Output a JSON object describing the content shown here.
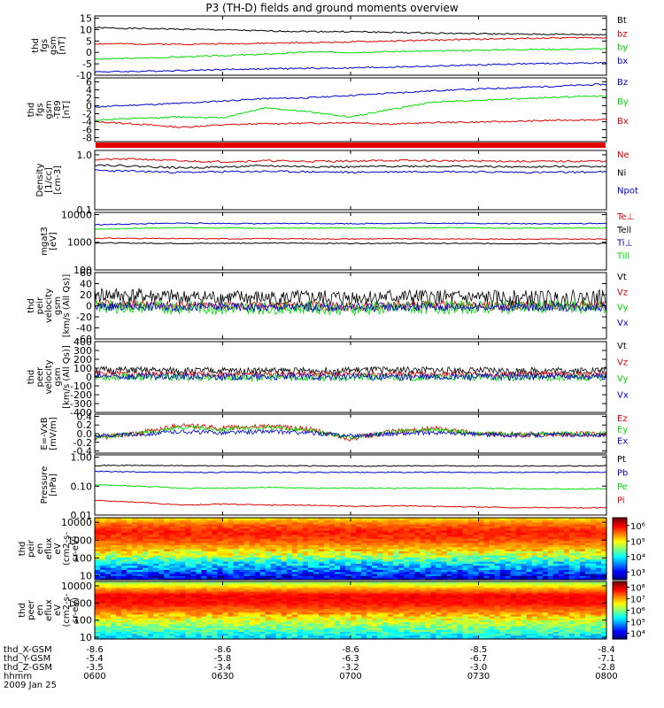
{
  "title": "P3 (TH-D) fields and ground moments overview",
  "colors": {
    "black": "#000000",
    "red": "#e00000",
    "green": "#00dd00",
    "blue": "#0000cc"
  },
  "chart_data": [
    {
      "type": "line",
      "panel": "fgs-gsm",
      "ylabel": [
        "thd",
        "fgs",
        "gsm",
        "[nT]"
      ],
      "ylim": [
        -10,
        16
      ],
      "yticks": [
        "15",
        "10",
        "5",
        "0",
        "-5",
        "-10"
      ],
      "ytick_values": [
        15,
        10,
        5,
        0,
        -5,
        -10
      ],
      "series": [
        {
          "name": "Bt",
          "color": "black",
          "values": [
            10.8,
            10.5,
            10.2,
            9.9,
            9.4,
            9.2,
            9.1,
            8.8,
            8.5,
            8.2,
            8.0,
            7.9,
            7.8
          ]
        },
        {
          "name": "bz",
          "color": "red",
          "values": [
            3.8,
            3.7,
            3.6,
            3.8,
            4.0,
            4.3,
            4.6,
            5.0,
            5.4,
            5.8,
            6.1,
            6.4,
            6.5
          ]
        },
        {
          "name": "by",
          "color": "green",
          "values": [
            -3.0,
            -2.5,
            -2.0,
            -1.4,
            -0.8,
            0.2,
            0.0,
            0.4,
            0.6,
            1.0,
            1.3,
            1.4,
            1.5
          ]
        },
        {
          "name": "bx",
          "color": "blue",
          "values": [
            -8.5,
            -8.3,
            -7.9,
            -7.5,
            -7.2,
            -7.0,
            -6.8,
            -6.4,
            -6.0,
            -5.5,
            -5.0,
            -4.8,
            -4.5
          ]
        }
      ]
    },
    {
      "type": "line",
      "panel": "fgs-gsm-t89",
      "ylabel": [
        "thd",
        "fgs",
        "gsm",
        "-T89",
        "[nT]"
      ],
      "ylim": [
        -9,
        7
      ],
      "yticks": [
        "6",
        "4",
        "2",
        "0",
        "-2",
        "-4",
        "-6",
        "-8"
      ],
      "ytick_values": [
        6,
        4,
        2,
        0,
        -2,
        -4,
        -6,
        -8
      ],
      "series": [
        {
          "name": "Bz",
          "color": "blue",
          "values": [
            -0.3,
            0.2,
            0.6,
            1.2,
            1.8,
            2.0,
            2.6,
            3.2,
            3.8,
            4.2,
            4.6,
            5.0,
            5.4
          ]
        },
        {
          "name": "By",
          "color": "green",
          "values": [
            -3.6,
            -3.2,
            -2.8,
            -3.0,
            -0.5,
            -1.5,
            -2.8,
            -0.8,
            1.0,
            1.4,
            1.8,
            2.2,
            2.5
          ]
        },
        {
          "name": "Bx",
          "color": "red",
          "values": [
            -4.0,
            -4.6,
            -5.4,
            -4.8,
            -4.5,
            -4.4,
            -4.2,
            -4.6,
            -4.2,
            -4.1,
            -3.9,
            -3.6,
            -3.5
          ]
        }
      ]
    },
    {
      "type": "line",
      "panel": "density",
      "ylabel": [
        "Density",
        "[1/cc]",
        "[cm-3]"
      ],
      "yscale": "log",
      "ylim": [
        0.1,
        1.2
      ],
      "yticks": [
        "1.0",
        "0.1"
      ],
      "ytick_values": [
        1.0,
        0.1
      ],
      "series": [
        {
          "name": "Ne",
          "color": "red",
          "values": [
            0.82,
            0.84,
            0.77,
            0.75,
            0.78,
            0.76,
            0.77,
            0.79,
            0.78,
            0.77,
            0.76,
            0.76,
            0.77
          ]
        },
        {
          "name": "Ni",
          "color": "black",
          "values": [
            0.66,
            0.62,
            0.58,
            0.6,
            0.63,
            0.61,
            0.6,
            0.62,
            0.62,
            0.61,
            0.6,
            0.61,
            0.62
          ]
        },
        {
          "name": "Npot",
          "color": "blue",
          "values": [
            0.52,
            0.5,
            0.48,
            0.49,
            0.5,
            0.49,
            0.48,
            0.49,
            0.5,
            0.49,
            0.48,
            0.48,
            0.49
          ]
        }
      ]
    },
    {
      "type": "line",
      "panel": "temperature",
      "ylabel": [
        "mgat3",
        "[eV]"
      ],
      "yscale": "log",
      "ylim": [
        100,
        12000
      ],
      "yticks": [
        "10000",
        "1000",
        "100"
      ],
      "ytick_values": [
        10000,
        1000,
        100
      ],
      "series": [
        {
          "name": "Te⊥",
          "color": "red",
          "values": [
            1400,
            1380,
            1350,
            1340,
            1350,
            1330,
            1320,
            1330,
            1320,
            1310,
            1300,
            1300,
            1300
          ]
        },
        {
          "name": "Tell",
          "color": "black",
          "values": [
            950,
            930,
            910,
            920,
            940,
            920,
            910,
            920,
            910,
            900,
            900,
            900,
            900
          ]
        },
        {
          "name": "Ti⊥",
          "color": "blue",
          "values": [
            4300,
            4600,
            4900,
            4800,
            4700,
            4800,
            4700,
            4800,
            4900,
            4800,
            4700,
            4700,
            4800
          ]
        },
        {
          "name": "Till",
          "color": "green",
          "values": [
            3000,
            3200,
            3400,
            3300,
            3200,
            3300,
            3300,
            3200,
            3400,
            3300,
            3200,
            3300,
            3300
          ]
        }
      ]
    },
    {
      "type": "line",
      "panel": "peir-velocity",
      "ylabel": [
        "thd",
        "peir",
        "velocity",
        "gsm",
        "[km/s (All Qs)]"
      ],
      "ylim": [
        -60,
        60
      ],
      "yticks": [
        "60",
        "40",
        "20",
        "0",
        "-20",
        "-40",
        "-60"
      ],
      "ytick_values": [
        60,
        40,
        20,
        0,
        -20,
        -40,
        -60
      ],
      "noise": [
        14,
        8,
        12,
        8
      ],
      "series": [
        {
          "name": "Vt",
          "color": "black",
          "values": [
            20,
            18,
            15,
            15,
            14,
            14,
            15,
            16,
            15,
            14,
            14,
            14,
            15
          ]
        },
        {
          "name": "Vz",
          "color": "red",
          "values": [
            2,
            2,
            1,
            0,
            0,
            1,
            -2,
            0,
            1,
            0,
            0,
            0,
            0
          ]
        },
        {
          "name": "Vy",
          "color": "green",
          "values": [
            -2,
            -2,
            -3,
            -4,
            -4,
            -3,
            -5,
            -4,
            -3,
            -3,
            -2,
            -2,
            -2
          ]
        },
        {
          "name": "Vx",
          "color": "blue",
          "values": [
            -2,
            -1,
            -2,
            -2,
            -3,
            -2,
            -3,
            -2,
            -2,
            -2,
            -2,
            -2,
            -2
          ]
        }
      ]
    },
    {
      "type": "line",
      "panel": "peer-velocity",
      "ylabel": [
        "thd",
        "peer",
        "velocity",
        "gsm",
        "[km/s (All Qs)]"
      ],
      "ylim": [
        -400,
        400
      ],
      "yticks": [
        "400",
        "300",
        "200",
        "100",
        "0",
        "-100",
        "-200",
        "-300",
        "-400"
      ],
      "ytick_values": [
        400,
        300,
        200,
        100,
        0,
        -100,
        -200,
        -300,
        -400
      ],
      "noise": [
        40,
        30,
        40,
        40
      ],
      "series": [
        {
          "name": "Vt",
          "color": "black",
          "values": [
            80,
            75,
            70,
            70,
            72,
            70,
            75,
            80,
            75,
            72,
            70,
            72,
            75
          ]
        },
        {
          "name": "Vz",
          "color": "red",
          "values": [
            40,
            35,
            30,
            30,
            30,
            32,
            30,
            35,
            30,
            30,
            28,
            30,
            30
          ]
        },
        {
          "name": "Vy",
          "color": "green",
          "values": [
            0,
            0,
            -5,
            -5,
            -5,
            -10,
            -5,
            -5,
            -5,
            -5,
            -5,
            -5,
            -5
          ]
        },
        {
          "name": "Vx",
          "color": "blue",
          "values": [
            10,
            5,
            5,
            5,
            0,
            5,
            5,
            0,
            0,
            5,
            5,
            5,
            5
          ]
        }
      ]
    },
    {
      "type": "line",
      "panel": "efield",
      "ylabel": [
        "E=-VxB",
        "[mV/m]"
      ],
      "ylim": [
        -0.45,
        0.45
      ],
      "yticks": [
        "0.4",
        "0.2",
        "0.0",
        "-0.2",
        "-0.4"
      ],
      "ytick_values": [
        0.4,
        0.2,
        0.0,
        -0.2,
        -0.4
      ],
      "noise": [
        0.06,
        0.05,
        0.05
      ],
      "series": [
        {
          "name": "Ez",
          "color": "red",
          "values": [
            -0.1,
            0.0,
            0.2,
            0.12,
            0.18,
            0.1,
            -0.12,
            0.05,
            0.12,
            0.0,
            -0.02,
            0.0,
            -0.02
          ]
        },
        {
          "name": "Ey",
          "color": "green",
          "values": [
            -0.08,
            0.0,
            0.15,
            0.1,
            0.15,
            0.08,
            -0.1,
            0.04,
            0.1,
            0.0,
            -0.02,
            0.0,
            0.0
          ]
        },
        {
          "name": "Ex",
          "color": "blue",
          "values": [
            -0.05,
            -0.02,
            0.05,
            0.02,
            0.05,
            0.02,
            -0.05,
            0.0,
            0.02,
            -0.02,
            -0.04,
            -0.02,
            -0.05
          ]
        }
      ]
    },
    {
      "type": "line",
      "panel": "pressure",
      "ylabel": [
        "Pressure",
        "[nPa]"
      ],
      "yscale": "log",
      "ylim": [
        0.01,
        1.2
      ],
      "yticks": [
        "1.00",
        "0.10",
        "0.01"
      ],
      "ytick_values": [
        1.0,
        0.1,
        0.01
      ],
      "series": [
        {
          "name": "Pt",
          "color": "black",
          "values": [
            0.52,
            0.52,
            0.51,
            0.5,
            0.5,
            0.5,
            0.49,
            0.5,
            0.5,
            0.5,
            0.5,
            0.5,
            0.5
          ]
        },
        {
          "name": "Pb",
          "color": "blue",
          "values": [
            0.32,
            0.31,
            0.3,
            0.3,
            0.3,
            0.3,
            0.3,
            0.3,
            0.3,
            0.3,
            0.3,
            0.3,
            0.3
          ]
        },
        {
          "name": "Pe",
          "color": "green",
          "values": [
            0.11,
            0.1,
            0.085,
            0.085,
            0.09,
            0.085,
            0.085,
            0.085,
            0.085,
            0.085,
            0.08,
            0.08,
            0.08
          ]
        },
        {
          "name": "Pi",
          "color": "red",
          "values": [
            0.032,
            0.028,
            0.022,
            0.024,
            0.022,
            0.022,
            0.02,
            0.021,
            0.02,
            0.019,
            0.018,
            0.018,
            0.018
          ]
        }
      ]
    },
    {
      "type": "heatmap",
      "panel": "peir-spectrogram",
      "ylabel": [
        "thd",
        "peir",
        "en",
        "eflux",
        "eV",
        "(cm2-s-",
        "sr-eV)"
      ],
      "yscale": "log",
      "ylim": [
        6,
        18000
      ],
      "yticks": [
        "10000",
        "1000",
        "100",
        "10"
      ],
      "ytick_values": [
        10000,
        1000,
        100,
        10
      ],
      "colorbar": {
        "ticks": [
          "10⁶",
          "10⁵",
          "10⁴",
          "10³"
        ],
        "tick_values": [
          6,
          5,
          4,
          3
        ],
        "range_log": [
          2.5,
          6.5
        ]
      },
      "energy_profile": [
        {
          "energy": 8,
          "level": 2.9
        },
        {
          "energy": 20,
          "level": 3.4
        },
        {
          "energy": 60,
          "level": 4.0
        },
        {
          "energy": 150,
          "level": 4.8
        },
        {
          "energy": 400,
          "level": 5.3
        },
        {
          "energy": 1000,
          "level": 5.7
        },
        {
          "energy": 3000,
          "level": 5.9
        },
        {
          "energy": 8000,
          "level": 5.6
        },
        {
          "energy": 15000,
          "level": 5.2
        }
      ]
    },
    {
      "type": "heatmap",
      "panel": "peer-spectrogram",
      "ylabel": [
        "thd",
        "peer",
        "en",
        "eflux",
        "eV",
        "(cm2-s-",
        "sr-eV)"
      ],
      "yscale": "log",
      "ylim": [
        8,
        18000
      ],
      "yticks": [
        "10000",
        "1000",
        "100",
        "10"
      ],
      "ytick_values": [
        10000,
        1000,
        100,
        10
      ],
      "colorbar": {
        "ticks": [
          "10⁸",
          "10⁷",
          "10⁶",
          "10⁵",
          "10⁴"
        ],
        "tick_values": [
          8,
          7,
          6,
          5,
          4
        ],
        "range_log": [
          3.5,
          8.5
        ]
      },
      "energy_profile": [
        {
          "energy": 10,
          "level": 5.2
        },
        {
          "energy": 30,
          "level": 5.8
        },
        {
          "energy": 100,
          "level": 6.4
        },
        {
          "energy": 300,
          "level": 7.2
        },
        {
          "energy": 1000,
          "level": 7.8
        },
        {
          "energy": 3000,
          "level": 7.9
        },
        {
          "energy": 8000,
          "level": 7.0
        },
        {
          "energy": 15000,
          "level": 6.2
        }
      ]
    }
  ],
  "xaxis": {
    "rows": [
      {
        "label": "thd_X-GSM",
        "values": [
          "-8.6",
          "-8.6",
          "-8.6",
          "-8.5",
          "-8.4"
        ]
      },
      {
        "label": "thd_Y-GSM",
        "values": [
          "-5.4",
          "-5.8",
          "-6.3",
          "-6.7",
          "-7.1"
        ]
      },
      {
        "label": "thd_Z-GSM",
        "values": [
          "-3.5",
          "-3.4",
          "-3.2",
          "-3.0",
          "-2.8"
        ]
      },
      {
        "label": "hhmm",
        "values": [
          "0600",
          "0630",
          "0700",
          "0730",
          "0800"
        ]
      }
    ],
    "date": "2009 Jan 25"
  }
}
